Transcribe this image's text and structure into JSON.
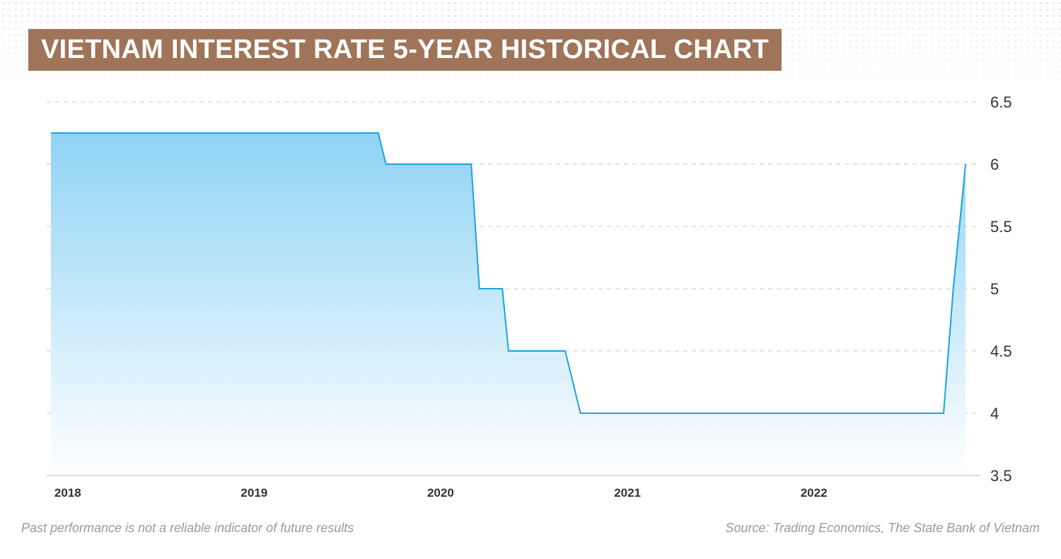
{
  "title": "VIETNAM INTEREST RATE 5-YEAR HISTORICAL CHART",
  "disclaimer": "Past performance is not a reliable indicator of future results",
  "source": "Source: Trading Economics, The State Bank of Vietnam",
  "colors": {
    "title_bg": "#a07458",
    "line": "#1aa3e0",
    "fill_top": "#8fd3f5",
    "grid": "#c9c9c9"
  },
  "chart_data": {
    "type": "area",
    "title": "VIETNAM INTEREST RATE 5-YEAR HISTORICAL CHART",
    "xlabel": "",
    "ylabel": "",
    "x_ticks": [
      "2018",
      "2019",
      "2020",
      "2021",
      "2022"
    ],
    "y_ticks": [
      "3.5",
      "4",
      "4.5",
      "5",
      "5.5",
      "6",
      "6.5"
    ],
    "ylim": [
      3.5,
      6.5
    ],
    "xlim": [
      "2017-11-29",
      "2022-11-23"
    ],
    "y_axis_position": "right",
    "grid": true,
    "series": [
      {
        "points": [
          {
            "x": "2017-11-29",
            "y": 6.25
          },
          {
            "x": "2019-09-01",
            "y": 6.25
          },
          {
            "x": "2019-09-16",
            "y": 6.0
          },
          {
            "x": "2020-03-01",
            "y": 6.0
          },
          {
            "x": "2020-03-17",
            "y": 5.0
          },
          {
            "x": "2020-05-01",
            "y": 5.0
          },
          {
            "x": "2020-05-13",
            "y": 4.5
          },
          {
            "x": "2020-09-01",
            "y": 4.5
          },
          {
            "x": "2020-10-01",
            "y": 4.0
          },
          {
            "x": "2022-09-12",
            "y": 4.0
          },
          {
            "x": "2022-10-01",
            "y": 5.0
          },
          {
            "x": "2022-10-25",
            "y": 6.0
          }
        ]
      }
    ]
  }
}
